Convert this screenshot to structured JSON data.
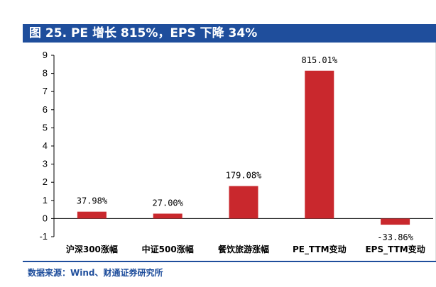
{
  "header": {
    "title": "图 25. PE 增长 815%，EPS 下降 34%"
  },
  "footer": {
    "source": "数据来源：Wind、财通证券研究所"
  },
  "colors": {
    "bar": "#c9282d",
    "title_bg": "#1f4e9c",
    "axis": "#000000"
  },
  "chart_data": {
    "type": "bar",
    "title": "图 25. PE 增长 815%，EPS 下降 34%",
    "xlabel": "",
    "ylabel": "",
    "categories": [
      "沪深300涨幅",
      "中证500涨幅",
      "餐饮旅游涨幅",
      "PE_TTM变动",
      "EPS_TTM变动"
    ],
    "values": [
      0.3798,
      0.27,
      1.7908,
      8.1501,
      -0.3386
    ],
    "data_labels": [
      "37.98%",
      "27.00%",
      "179.08%",
      "815.01%",
      "-33.86%"
    ],
    "yticks": [
      "-1",
      "0",
      "1",
      "2",
      "3",
      "4",
      "5",
      "6",
      "7",
      "8",
      "9"
    ],
    "ylim": [
      -1,
      9
    ],
    "grid": false,
    "legend": "none"
  }
}
